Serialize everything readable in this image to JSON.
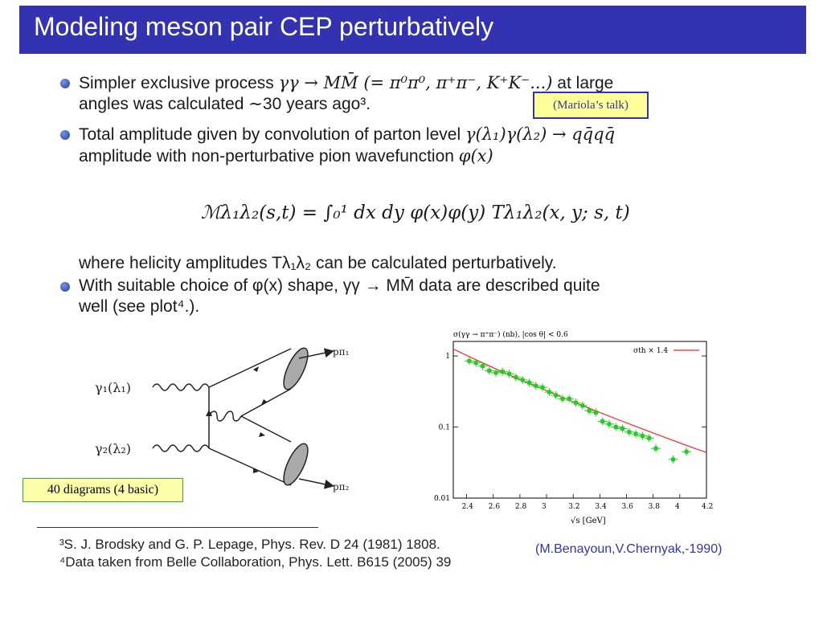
{
  "slide": {
    "title": "Modeling meson pair CEP perturbatively"
  },
  "bullets": {
    "b1_line1_pre": "Simpler exclusive process ",
    "b1_math1": "γγ → MM̄ (= π⁰π⁰, π⁺π⁻, K⁺K⁻...)",
    "b1_line1_post": " at large",
    "b1_line2": "angles was calculated ∼30 years ago³.",
    "b2_line1_pre": "Total amplitude given by convolution of parton level ",
    "b2_math1": "γ(λ₁)γ(λ₂) → qq̄qq̄",
    "b2_line2_pre": "amplitude with non-perturbative pion wavefunction ",
    "b2_math2": "φ(x)",
    "formula": "ℳλ₁λ₂(s,t) = ∫₀¹ dx dy φ(x)φ(y) Tλ₁λ₂(x, y; s, t)",
    "b2_line3": "where helicity amplitudes Tλ₁λ₂ can be calculated perturbatively.",
    "b3_line1": "With suitable choice of φ(x) shape, γγ → MM̄ data are described quite",
    "b3_line2": "well (see plot⁴.)."
  },
  "notes": {
    "mariola": "(Mariola’s talk)",
    "diagrams": "40 diagrams (4 basic)",
    "cite": "(M.Benayoun,V.Chernyak,-1990)"
  },
  "footnotes": {
    "f3": "³S. J. Brodsky and G. P. Lepage, Phys. Rev. D 24 (1981) 1808.",
    "f4": "⁴Data taken from Belle Collaboration, Phys. Lett. B615 (2005) 39"
  },
  "feynman": {
    "gamma1": "γ₁(λ₁)",
    "gamma2": "γ₂(λ₂)",
    "p1": "pπ₁",
    "p2": "pπ₂"
  },
  "chart_data": {
    "type": "scatter",
    "title": "σ(γγ → π⁺π⁻) (nb), |cos θ| < 0.6",
    "xlabel": "√s [GeV]",
    "ylabel": "",
    "xlim": [
      2.3,
      4.2
    ],
    "ylim": [
      0.01,
      1.6
    ],
    "yscale": "log",
    "xticks": [
      2.4,
      2.6,
      2.8,
      3,
      3.2,
      3.4,
      3.6,
      3.8,
      4,
      4.2
    ],
    "xtick_labels": [
      "2.4",
      "2.6",
      "2.8",
      "3",
      "3.2",
      "3.4",
      "3.6",
      "3.8",
      "4",
      "4.2"
    ],
    "yticks": [
      1,
      0.1,
      0.01
    ],
    "ytick_labels": [
      "1",
      "0.1",
      "0.01"
    ],
    "legend": "σth × 1.4",
    "legend_position": "top-right",
    "grid": false,
    "series": [
      {
        "name": "data",
        "color": "#22cc22",
        "x": [
          2.42,
          2.47,
          2.52,
          2.57,
          2.62,
          2.67,
          2.72,
          2.77,
          2.82,
          2.87,
          2.92,
          2.97,
          3.02,
          3.07,
          3.12,
          3.17,
          3.22,
          3.27,
          3.32,
          3.37,
          3.42,
          3.47,
          3.52,
          3.57,
          3.62,
          3.67,
          3.72,
          3.77,
          3.82,
          3.95,
          4.05
        ],
        "y": [
          0.85,
          0.8,
          0.72,
          0.62,
          0.58,
          0.6,
          0.56,
          0.5,
          0.46,
          0.42,
          0.38,
          0.36,
          0.31,
          0.28,
          0.25,
          0.25,
          0.22,
          0.2,
          0.17,
          0.16,
          0.12,
          0.11,
          0.1,
          0.095,
          0.085,
          0.08,
          0.075,
          0.07,
          0.05,
          0.035,
          0.045
        ]
      },
      {
        "name": "σth × 1.4",
        "color": "#ff2222",
        "x": [
          2.3,
          2.5,
          2.7,
          2.9,
          3.1,
          3.3,
          3.5,
          3.7,
          3.9,
          4.1,
          4.2
        ],
        "y": [
          1.25,
          0.83,
          0.56,
          0.39,
          0.27,
          0.19,
          0.135,
          0.097,
          0.07,
          0.051,
          0.044
        ]
      }
    ]
  }
}
